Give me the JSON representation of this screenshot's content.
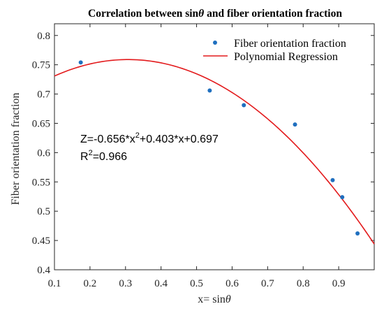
{
  "chart_data": {
    "type": "scatter",
    "title": "Correlation between sin θ and fiber orientation fraction",
    "title_parts": [
      "Correlation between sin",
      "θ",
      " and fiber orientation fraction"
    ],
    "xlabel_parts": [
      "x= sin",
      "θ"
    ],
    "ylabel": "Fiber orientation fraction",
    "xlim": [
      0.1,
      1.0
    ],
    "ylim": [
      0.4,
      0.82
    ],
    "xticks": [
      0.1,
      0.2,
      0.3,
      0.4,
      0.5,
      0.6,
      0.7,
      0.8,
      0.9
    ],
    "xtick_labels": [
      "0.1",
      "0.2",
      "0.3",
      "0.4",
      "0.5",
      "0.6",
      "0.7",
      "0.8",
      "0.9"
    ],
    "yticks": [
      0.4,
      0.45,
      0.5,
      0.55,
      0.6,
      0.65,
      0.7,
      0.75,
      0.8
    ],
    "ytick_labels": [
      "0.4",
      "0.45",
      "0.5",
      "0.55",
      "0.6",
      "0.65",
      "0.7",
      "0.75",
      "0.8"
    ],
    "grid": false,
    "legend_position": "top-right",
    "series": [
      {
        "name": "Fiber orientation fraction",
        "kind": "scatter",
        "color": "#1f6fbf",
        "x": [
          0.174,
          0.537,
          0.633,
          0.777,
          0.883,
          0.91,
          0.953
        ],
        "y": [
          0.754,
          0.706,
          0.681,
          0.648,
          0.553,
          0.524,
          0.462
        ]
      },
      {
        "name": "Polynomial Regression",
        "kind": "line",
        "color": "#e31a1c",
        "coefficients": {
          "a": -0.656,
          "b": 0.403,
          "c": 0.697
        },
        "x_range": [
          0.1,
          1.0
        ]
      }
    ],
    "annotation": {
      "equation_parts": [
        "Z=-0.656*x",
        "2",
        "+0.403*x+0.697"
      ],
      "r2_parts": [
        "R",
        "2",
        "=0.966"
      ]
    }
  }
}
